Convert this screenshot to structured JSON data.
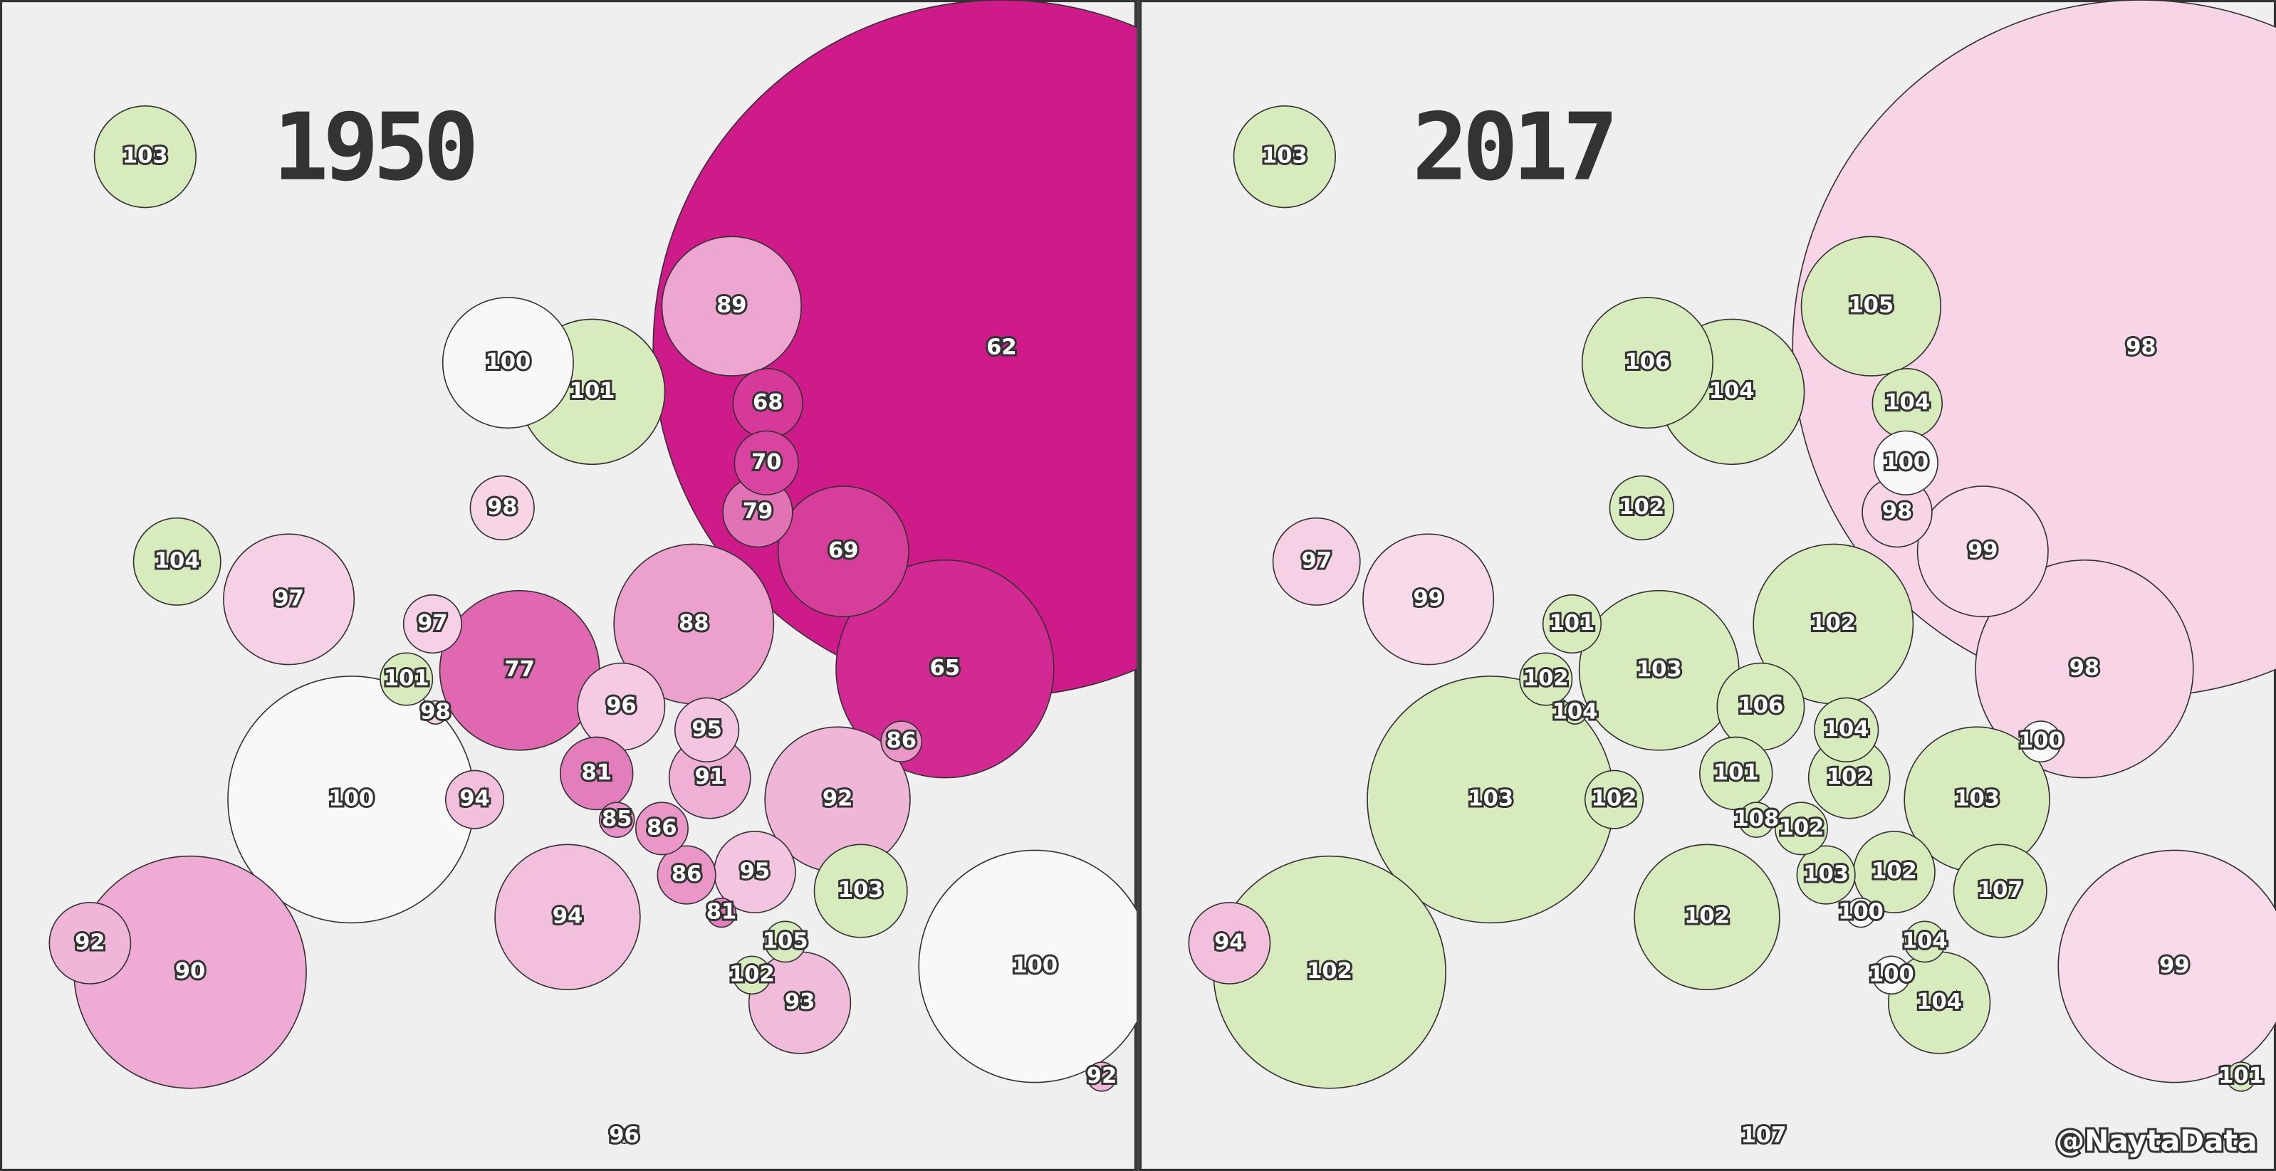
{
  "maps": [
    {
      "title": "1950",
      "values": [
        103,
        100,
        101,
        89,
        62,
        68,
        70,
        79,
        69,
        65,
        88,
        77,
        98,
        104,
        97,
        97,
        101,
        98,
        100,
        96,
        95,
        81,
        91,
        94,
        85,
        86,
        86,
        95,
        81,
        92,
        86,
        103,
        105,
        102,
        93,
        94,
        90,
        92,
        100,
        92,
        96
      ]
    },
    {
      "title": "2017",
      "values": [
        103,
        106,
        104,
        105,
        98,
        104,
        100,
        98,
        99,
        98,
        102,
        103,
        102,
        97,
        99,
        101,
        102,
        104,
        103,
        106,
        104,
        101,
        102,
        102,
        108,
        102,
        103,
        102,
        100,
        103,
        100,
        107,
        104,
        100,
        104,
        102,
        102,
        94,
        99,
        101,
        107
      ]
    }
  ],
  "credit": "@NaytaData"
}
